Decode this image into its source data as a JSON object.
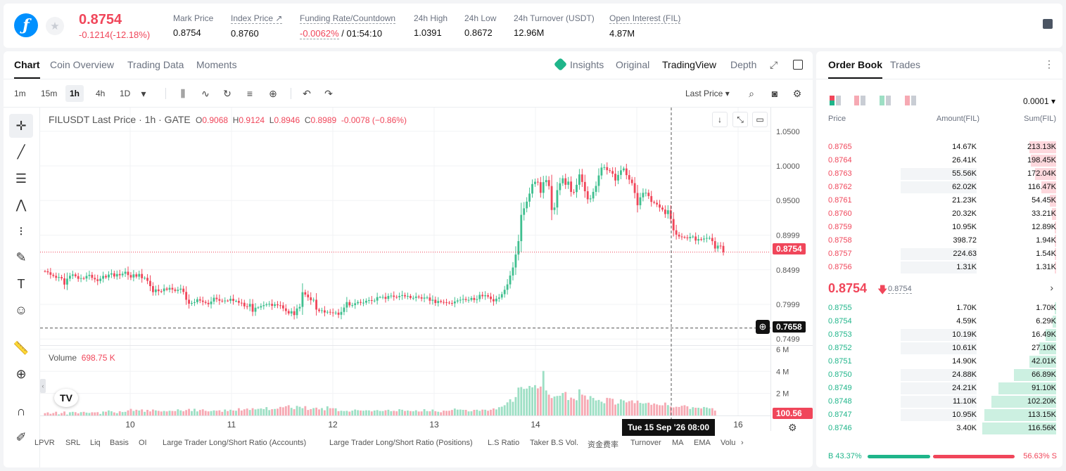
{
  "header": {
    "last_price": "0.8754",
    "change": "-0.1214(-12.18%)",
    "stats": [
      {
        "label": "Mark Price",
        "value": "0.8754"
      },
      {
        "label": "Index Price ↗",
        "value": "0.8760"
      },
      {
        "label": "Funding Rate/Countdown",
        "value_neg": "-0.0062%",
        "value": " / 01:54:10"
      },
      {
        "label": "24h High",
        "value": "1.0391"
      },
      {
        "label": "24h Low",
        "value": "0.8672"
      },
      {
        "label": "24h Turnover (USDT)",
        "value": "12.96M"
      },
      {
        "label": "Open Interest (FIL)",
        "value": "4.87M"
      }
    ]
  },
  "chart_tabs": [
    "Chart",
    "Coin Overview",
    "Trading Data",
    "Moments"
  ],
  "chart_modes": [
    "Insights",
    "Original",
    "TradingView",
    "Depth"
  ],
  "intervals": [
    "1m",
    "15m",
    "1h",
    "4h",
    "1D"
  ],
  "price_source": "Last Price",
  "legend": {
    "symbol": "FILUSDT Last Price · 1h · GATE",
    "o_label": "O",
    "o": "0.9068",
    "h_label": "H",
    "h": "0.9124",
    "l_label": "L",
    "l": "0.8946",
    "c_label": "C",
    "c": "0.8989",
    "chg": "-0.0078 (−0.86%)"
  },
  "volume_legend": {
    "label": "Volume",
    "value": "698.75 K"
  },
  "tags": {
    "last": "0.8754",
    "cursor": "0.7658",
    "volume": "100.56 K"
  },
  "time_tip": "Tue 15 Sep '26   08:00",
  "indicators": [
    "LPVR",
    "SRL",
    "Liq",
    "Basis",
    "OI",
    "Large Trader Long/Short Ratio (Accounts)",
    "Large Trader Long/Short Ratio (Positions)",
    "L.S Ratio",
    "Taker B.S Vol.",
    "资金费率",
    "Turnover",
    "MA",
    "EMA",
    "Volu"
  ],
  "colors": {
    "up": "#3fbf8f",
    "down": "#f0465a",
    "up_vol": "#9ddfc4",
    "down_vol": "#f6a9b3"
  },
  "chart_data": {
    "type": "candlestick",
    "price_axis": {
      "ticks": [
        "1.0500",
        "1.0000",
        "0.9500",
        "0.8999",
        "0.8499",
        "0.7999",
        "0.7499"
      ],
      "range": [
        0.742,
        1.064
      ]
    },
    "volume_axis": {
      "ticks": [
        "6 M",
        "4 M",
        "2 M"
      ],
      "range": [
        0,
        6250000
      ]
    },
    "time_axis": {
      "ticks": [
        "10",
        "11",
        "12",
        "13",
        "14",
        "15",
        "16"
      ]
    },
    "ohlc": [
      [
        0.8479,
        0.8478,
        0.8463,
        0.8427,
        0.8411,
        0.8383,
        0.8394,
        0.8375,
        0.8285,
        0.8371,
        0.8412,
        0.8432,
        0.8407,
        0.8368,
        0.8378,
        0.8373,
        0.841,
        0.8426,
        0.8382,
        0.8361,
        0.8337,
        0.837,
        0.8411,
        0.8389,
        0.843,
        0.8448,
        0.8402,
        0.8438,
        0.842,
        0.8442,
        0.8471,
        0.8423,
        0.8388,
        0.8433,
        0.84,
        0.8439,
        0.8377,
        0.8383,
        0.8339,
        0.8263,
        0.8176,
        0.8215,
        0.819,
        0.8189,
        0.8228,
        0.8211,
        0.8238,
        0.8214,
        0.8194,
        0.8211,
        0.8226,
        0.8179,
        0.8066,
        0.8009,
        0.802,
        0.8031,
        0.8073,
        0.8054,
        0.8035,
        0.8021,
        0.8001,
        0.804,
        0.8095,
        0.8075,
        0.8052,
        0.8051,
        0.8054,
        0.8051,
        0.808,
        0.8049,
        0.8049,
        0.8023,
        0.8022,
        0.7971,
        0.7966,
        0.8006,
        0.7893,
        0.7951,
        0.7955,
        0.7974,
        0.7988,
        0.8,
        0.8007,
        0.7978,
        0.8,
        0.7986,
        0.7985,
        0.7941,
        0.7903,
        0.7868,
        0.79,
        0.7844,
        0.794,
        0.7963,
        0.8175,
        0.8141,
        0.8101,
        0.8059,
        0.8066,
        0.7924,
        0.7903,
        0.7913,
        0.7881,
        0.7891,
        0.7883,
        0.7873,
        0.788,
        0.7849,
        0.789,
        0.7953,
        0.8032,
        0.7985,
        0.7988,
        0.8015,
        0.8033,
        0.8022,
        0.8024,
        0.8051,
        0.806,
        0.8053,
        0.8054,
        0.8104,
        0.8104,
        0.8107,
        0.8079,
        0.8121,
        0.8126,
        0.8108,
        0.8103,
        0.8121,
        0.8133,
        0.8115,
        0.8121,
        0.8092,
        0.8093,
        0.8112,
        0.8101,
        0.8083,
        0.8097,
        0.8099,
        0.8052,
        0.8066,
        0.8019,
        0.8048,
        0.8034,
        0.8029,
        0.8025,
        0.8019,
        0.8014,
        0.8041,
        0.8056,
        0.8066,
        0.8077,
        0.8063,
        0.8064,
        0.8092,
        0.8063,
        0.8075,
        0.8137,
        0.8117,
        0.8131,
        0.8112,
        0.8075,
        0.8043,
        0.8081,
        0.8098,
        0.8147,
        0.821,
        0.8288,
        0.8416,
        0.8532,
        0.8719,
        0.8913,
        0.9293,
        0.9387,
        0.9484,
        0.96,
        0.9738,
        0.9771,
        0.9765,
        0.9611,
        0.9765,
        0.9795,
        0.9709,
        0.9363,
        0.9399,
        0.965,
        0.9749,
        0.9821,
        0.9727,
        0.9774,
        0.9624,
        0.9621,
        0.9727,
        0.9877,
        0.9768,
        0.9634,
        0.9518,
        0.953,
        0.9625,
        0.9711,
        0.9862,
        0.9976,
        0.9982,
        0.9938,
        0.9926,
        0.9887,
        0.9789,
        0.987,
        0.9936,
        0.9963,
        0.9867,
        0.9802,
        0.9751,
        0.9609,
        0.9432,
        0.9546,
        0.9611,
        0.9612,
        0.9564,
        0.948,
        0.9467,
        0.9443,
        0.9398,
        0.9369,
        0.9304,
        0.9359,
        0.9232,
        0.9069,
        0.9007,
        0.898,
        0.8973,
        0.8966,
        0.8955,
        0.8975,
        0.898,
        0.8921,
        0.8943,
        0.8937,
        0.895,
        0.8959,
        0.8959,
        0.8913,
        0.8806,
        0.8848,
        0.8844
      ],
      [
        0.8478,
        0.8463,
        0.8427,
        0.8411,
        0.8383,
        0.8394,
        0.8375,
        0.8285,
        0.8371,
        0.8412,
        0.8432,
        0.8407,
        0.8368,
        0.8378,
        0.8373,
        0.841,
        0.8426,
        0.8382,
        0.8361,
        0.8337,
        0.837,
        0.8411,
        0.8389,
        0.843,
        0.8448,
        0.8402,
        0.8438,
        0.842,
        0.8442,
        0.8471,
        0.8423,
        0.8388,
        0.8433,
        0.84,
        0.8439,
        0.8377,
        0.8383,
        0.8339,
        0.8263,
        0.8176,
        0.8215,
        0.819,
        0.8189,
        0.8228,
        0.8211,
        0.8238,
        0.8214,
        0.8194,
        0.8211,
        0.8226,
        0.8179,
        0.8066,
        0.8009,
        0.802,
        0.8031,
        0.8073,
        0.8054,
        0.8035,
        0.8021,
        0.8001,
        0.804,
        0.8095,
        0.8075,
        0.8052,
        0.8051,
        0.8054,
        0.8051,
        0.808,
        0.8049,
        0.8049,
        0.8023,
        0.8022,
        0.7971,
        0.7966,
        0.8006,
        0.7893,
        0.7951,
        0.7955,
        0.7974,
        0.7988,
        0.8,
        0.8007,
        0.7978,
        0.8,
        0.7986,
        0.7985,
        0.7941,
        0.7903,
        0.7868,
        0.79,
        0.7844,
        0.794,
        0.7963,
        0.8175,
        0.8141,
        0.8101,
        0.8059,
        0.8066,
        0.7924,
        0.7903,
        0.7913,
        0.7881,
        0.7891,
        0.7883,
        0.7873,
        0.788,
        0.7849,
        0.789,
        0.7953,
        0.8032,
        0.7985,
        0.7988,
        0.8015,
        0.8033,
        0.8022,
        0.8024,
        0.8051,
        0.806,
        0.8053,
        0.8054,
        0.8104,
        0.8104,
        0.8107,
        0.8079,
        0.8121,
        0.8126,
        0.8108,
        0.8103,
        0.8121,
        0.8133,
        0.8115,
        0.8121,
        0.8092,
        0.8093,
        0.8112,
        0.8101,
        0.8083,
        0.8097,
        0.8099,
        0.8052,
        0.8066,
        0.8019,
        0.8048,
        0.8034,
        0.8029,
        0.8025,
        0.8019,
        0.8014,
        0.8041,
        0.8056,
        0.8066,
        0.8077,
        0.8063,
        0.8064,
        0.8092,
        0.8063,
        0.8075,
        0.8137,
        0.8117,
        0.8131,
        0.8112,
        0.8075,
        0.8043,
        0.8081,
        0.8098,
        0.8147,
        0.821,
        0.8288,
        0.8416,
        0.8532,
        0.8719,
        0.8913,
        0.9293,
        0.9387,
        0.9484,
        0.96,
        0.9738,
        0.9771,
        0.9765,
        0.9611,
        0.9765,
        0.9795,
        0.9709,
        0.9363,
        0.9399,
        0.965,
        0.9749,
        0.9821,
        0.9727,
        0.9774,
        0.9624,
        0.9621,
        0.9727,
        0.9877,
        0.9768,
        0.9634,
        0.9518,
        0.953,
        0.9625,
        0.9711,
        0.9862,
        0.9976,
        0.9982,
        0.9938,
        0.9926,
        0.9887,
        0.9789,
        0.987,
        0.9936,
        0.9963,
        0.9867,
        0.9802,
        0.9751,
        0.9609,
        0.9432,
        0.9546,
        0.9611,
        0.9612,
        0.9564,
        0.948,
        0.9467,
        0.9443,
        0.9398,
        0.9369,
        0.9304,
        0.9359,
        0.9232,
        0.9069,
        0.9007,
        0.898,
        0.8973,
        0.8966,
        0.8955,
        0.8975,
        0.898,
        0.8921,
        0.8943,
        0.8937,
        0.895,
        0.8959,
        0.8959,
        0.8913,
        0.8806,
        0.8848,
        0.8844,
        0.8754
      ]
    ],
    "volume": [
      0.21,
      0.28,
      0.15,
      0.22,
      0.34,
      0.1,
      0.22,
      0.36,
      0.08,
      0.29,
      0.33,
      0.3,
      0.19,
      0.3,
      0.33,
      0.26,
      0.23,
      0.29,
      0.28,
      0.3,
      0.14,
      0.36,
      0.34,
      0.46,
      0.38,
      0.28,
      0.21,
      0.38,
      0.31,
      0.33,
      0.46,
      0.6,
      0.41,
      0.52,
      0.45,
      0.55,
      0.33,
      0.51,
      0.37,
      0.54,
      0.46,
      0.42,
      0.36,
      0.41,
      0.37,
      0.43,
      0.41,
      0.4,
      0.56,
      0.46,
      0.38,
      0.49,
      0.6,
      0.4,
      0.61,
      0.37,
      0.5,
      0.56,
      0.42,
      0.37,
      0.4,
      0.46,
      0.43,
      0.47,
      0.33,
      0.54,
      0.4,
      0.52,
      0.45,
      0.43,
      0.66,
      0.45,
      0.56,
      0.63,
      0.5,
      0.66,
      0.55,
      0.6,
      0.64,
      0.58,
      0.76,
      0.49,
      0.57,
      0.59,
      0.62,
      0.78,
      0.74,
      0.84,
      0.93,
      0.69,
      0.57,
      0.87,
      0.79,
      0.66,
      0.85,
      0.5,
      0.58,
      0.67,
      0.71,
      0.55,
      0.67,
      0.47,
      0.83,
      0.66,
      0.66,
      0.65,
      0.39,
      0.43,
      0.4,
      0.42,
      0.35,
      0.44,
      0.54,
      0.48,
      0.45,
      0.43,
      0.47,
      0.46,
      0.37,
      0.45,
      0.49,
      0.41,
      0.4,
      0.47,
      0.52,
      0.39,
      0.42,
      0.38,
      0.57,
      0.52,
      0.41,
      0.45,
      0.4,
      0.38,
      0.47,
      0.36,
      0.37,
      0.57,
      0.4,
      0.38,
      0.54,
      0.39,
      0.34,
      0.29,
      0.44,
      0.42,
      0.43,
      0.5,
      0.63,
      0.53,
      0.54,
      0.51,
      0.51,
      0.37,
      0.38,
      0.51,
      0.52,
      0.42,
      0.53,
      0.52,
      0.43,
      0.52,
      0.64,
      0.55,
      0.75,
      0.8,
      0.93,
      1.19,
      1.47,
      1.24,
      1.67,
      2.53,
      2.58,
      2.41,
      2.44,
      2.68,
      2.55,
      2.75,
      2.46,
      2.62,
      4.04,
      2.27,
      1.89,
      1.58,
      1.72,
      1.77,
      1.79,
      2.04,
      2.13,
      1.4,
      1.62,
      1.51,
      1.38,
      2.37,
      1.89,
      1.81,
      1.44,
      1.76,
      1.59,
      1.36,
      1.41,
      1.25,
      1.11,
      1.6,
      1.57,
      1.51,
      0.99,
      1.08,
      1.46,
      1.36,
      1.19,
      1.3,
      1.37,
      1.12,
      1.35,
      1.14,
      1.08,
      1.12,
      1.16,
      0.97,
      1.09,
      1.0,
      0.93,
      0.92,
      1.17,
      0.94,
      0.81,
      0.73,
      0.79,
      0.77,
      0.88,
      0.93,
      0.83,
      0.59,
      0.75,
      0.7,
      0.7,
      0.64,
      0.77,
      0.72,
      0.64,
      0.66,
      0.44
    ]
  },
  "orderbook": {
    "tabs": [
      "Order Book",
      "Trades"
    ],
    "precision": "0.0001",
    "headers": {
      "price": "Price",
      "amount": "Amount(FIL)",
      "sum": "Sum(FIL)"
    },
    "asks": [
      {
        "price": "0.8765",
        "amount": "14.67K",
        "sum": "213.13K",
        "amt_frac": 0.0,
        "sum_frac": 0.36
      },
      {
        "price": "0.8764",
        "amount": "26.41K",
        "sum": "198.45K",
        "amt_frac": 0.0,
        "sum_frac": 0.34
      },
      {
        "price": "0.8763",
        "amount": "55.56K",
        "sum": "172.04K",
        "amt_frac": 0.49,
        "sum_frac": 0.29
      },
      {
        "price": "0.8762",
        "amount": "62.02K",
        "sum": "116.47K",
        "amt_frac": 0.49,
        "sum_frac": 0.2
      },
      {
        "price": "0.8761",
        "amount": "21.23K",
        "sum": "54.45K",
        "amt_frac": 0.0,
        "sum_frac": 0.09
      },
      {
        "price": "0.8760",
        "amount": "20.32K",
        "sum": "33.21K",
        "amt_frac": 0.0,
        "sum_frac": 0.06
      },
      {
        "price": "0.8759",
        "amount": "10.95K",
        "sum": "12.89K",
        "amt_frac": 0.0,
        "sum_frac": 0.02
      },
      {
        "price": "0.8758",
        "amount": "398.72",
        "sum": "1.94K",
        "amt_frac": 0.0,
        "sum_frac": 0.01
      },
      {
        "price": "0.8757",
        "amount": "224.63",
        "sum": "1.54K",
        "amt_frac": 0.49,
        "sum_frac": 0.01
      },
      {
        "price": "0.8756",
        "amount": "1.31K",
        "sum": "1.31K",
        "amt_frac": 0.49,
        "sum_frac": 0.01
      }
    ],
    "mid": {
      "price": "0.8754",
      "mark": "0.8754"
    },
    "bids": [
      {
        "price": "0.8755",
        "amount": "1.70K",
        "sum": "1.70K",
        "amt_frac": 0.0,
        "sum_frac": 0.01
      },
      {
        "price": "0.8754",
        "amount": "4.59K",
        "sum": "6.29K",
        "amt_frac": 0.0,
        "sum_frac": 0.05
      },
      {
        "price": "0.8753",
        "amount": "10.19K",
        "sum": "16.49K",
        "amt_frac": 0.49,
        "sum_frac": 0.14
      },
      {
        "price": "0.8752",
        "amount": "10.61K",
        "sum": "27.10K",
        "amt_frac": 0.49,
        "sum_frac": 0.23
      },
      {
        "price": "0.8751",
        "amount": "14.90K",
        "sum": "42.01K",
        "amt_frac": 0.0,
        "sum_frac": 0.36
      },
      {
        "price": "0.8750",
        "amount": "24.88K",
        "sum": "66.89K",
        "amt_frac": 0.49,
        "sum_frac": 0.57
      },
      {
        "price": "0.8749",
        "amount": "24.21K",
        "sum": "91.10K",
        "amt_frac": 0.49,
        "sum_frac": 0.78
      },
      {
        "price": "0.8748",
        "amount": "11.10K",
        "sum": "102.20K",
        "amt_frac": 0.49,
        "sum_frac": 0.88
      },
      {
        "price": "0.8747",
        "amount": "10.95K",
        "sum": "113.15K",
        "amt_frac": 0.49,
        "sum_frac": 0.97
      },
      {
        "price": "0.8746",
        "amount": "3.40K",
        "sum": "116.56K",
        "amt_frac": 0.0,
        "sum_frac": 1.0
      }
    ],
    "buy_ratio": "B 43.37%",
    "sell_ratio": "56.63% S",
    "buy_fraction": 0.4337
  }
}
